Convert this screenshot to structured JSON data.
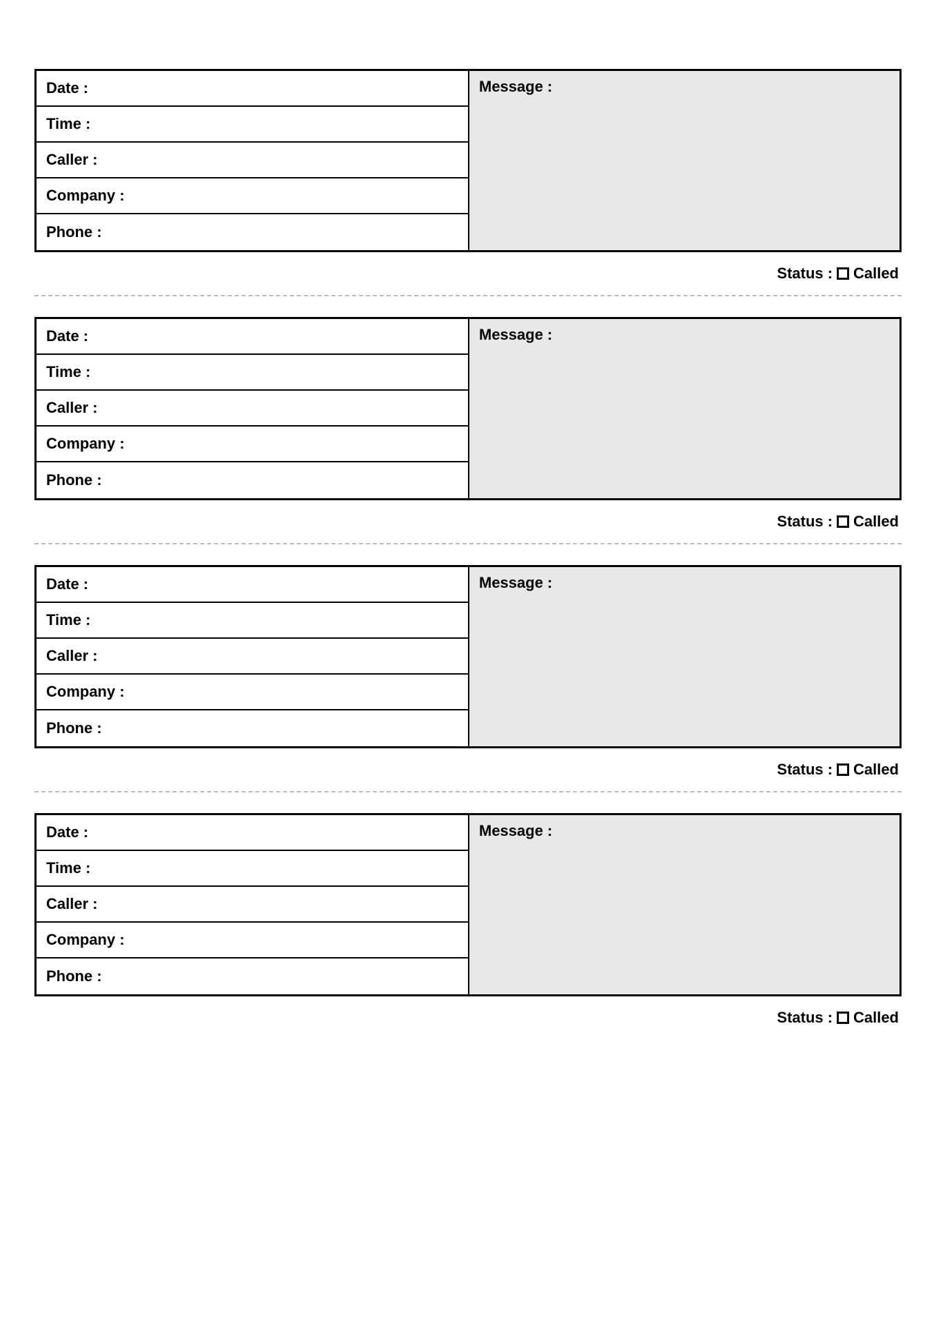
{
  "entries": [
    {
      "date_label": "Date :",
      "time_label": "Time :",
      "caller_label": "Caller :",
      "company_label": "Company :",
      "phone_label": "Phone :",
      "message_label": "Message :",
      "status_label": "Status :",
      "called_label": "Called"
    },
    {
      "date_label": "Date :",
      "time_label": "Time :",
      "caller_label": "Caller :",
      "company_label": "Company :",
      "phone_label": "Phone :",
      "message_label": "Message :",
      "status_label": "Status :",
      "called_label": "Called"
    },
    {
      "date_label": "Date :",
      "time_label": "Time :",
      "caller_label": "Caller :",
      "company_label": "Company :",
      "phone_label": "Phone :",
      "message_label": "Message :",
      "status_label": "Status :",
      "called_label": "Called"
    },
    {
      "date_label": "Date :",
      "time_label": "Time :",
      "caller_label": "Caller :",
      "company_label": "Company :",
      "phone_label": "Phone :",
      "message_label": "Message :",
      "status_label": "Status :",
      "called_label": "Called"
    }
  ],
  "colors": {
    "border": "#000000",
    "message_bg": "#e8e8e8",
    "white_bg": "#ffffff",
    "divider": "#bbbbbb"
  },
  "typography": {
    "font_family": "Arial",
    "label_fontsize": 22,
    "label_weight": "bold"
  },
  "layout": {
    "entry_count": 4,
    "left_fields_per_entry": 5
  }
}
